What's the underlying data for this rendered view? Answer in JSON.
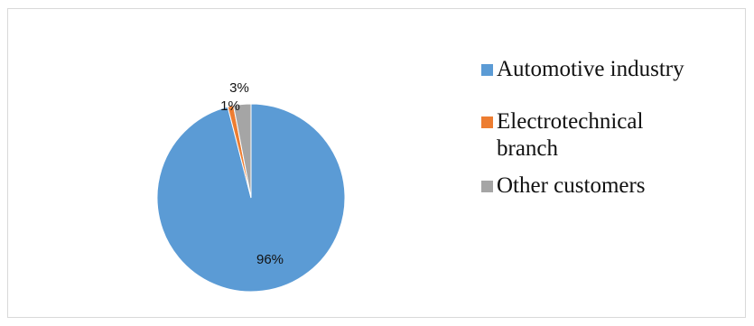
{
  "chart_data": {
    "type": "pie",
    "title": "",
    "slices": [
      {
        "label": "Automotive industry",
        "value": 96,
        "data_label": "96%",
        "color": "#5b9bd5"
      },
      {
        "label": "Electrotechnical branch",
        "value": 1,
        "data_label": "1%",
        "color": "#ed7d31"
      },
      {
        "label": "Other customers",
        "value": 3,
        "data_label": "3%",
        "color": "#a5a5a5"
      }
    ],
    "legend": {
      "position": "right",
      "items": [
        {
          "text": "Automotive industry",
          "color": "#5b9bd5"
        },
        {
          "text": "Electrotechnical\nbranch",
          "color": "#ed7d31"
        },
        {
          "text": "Other customers",
          "color": "#a5a5a5"
        }
      ]
    }
  }
}
